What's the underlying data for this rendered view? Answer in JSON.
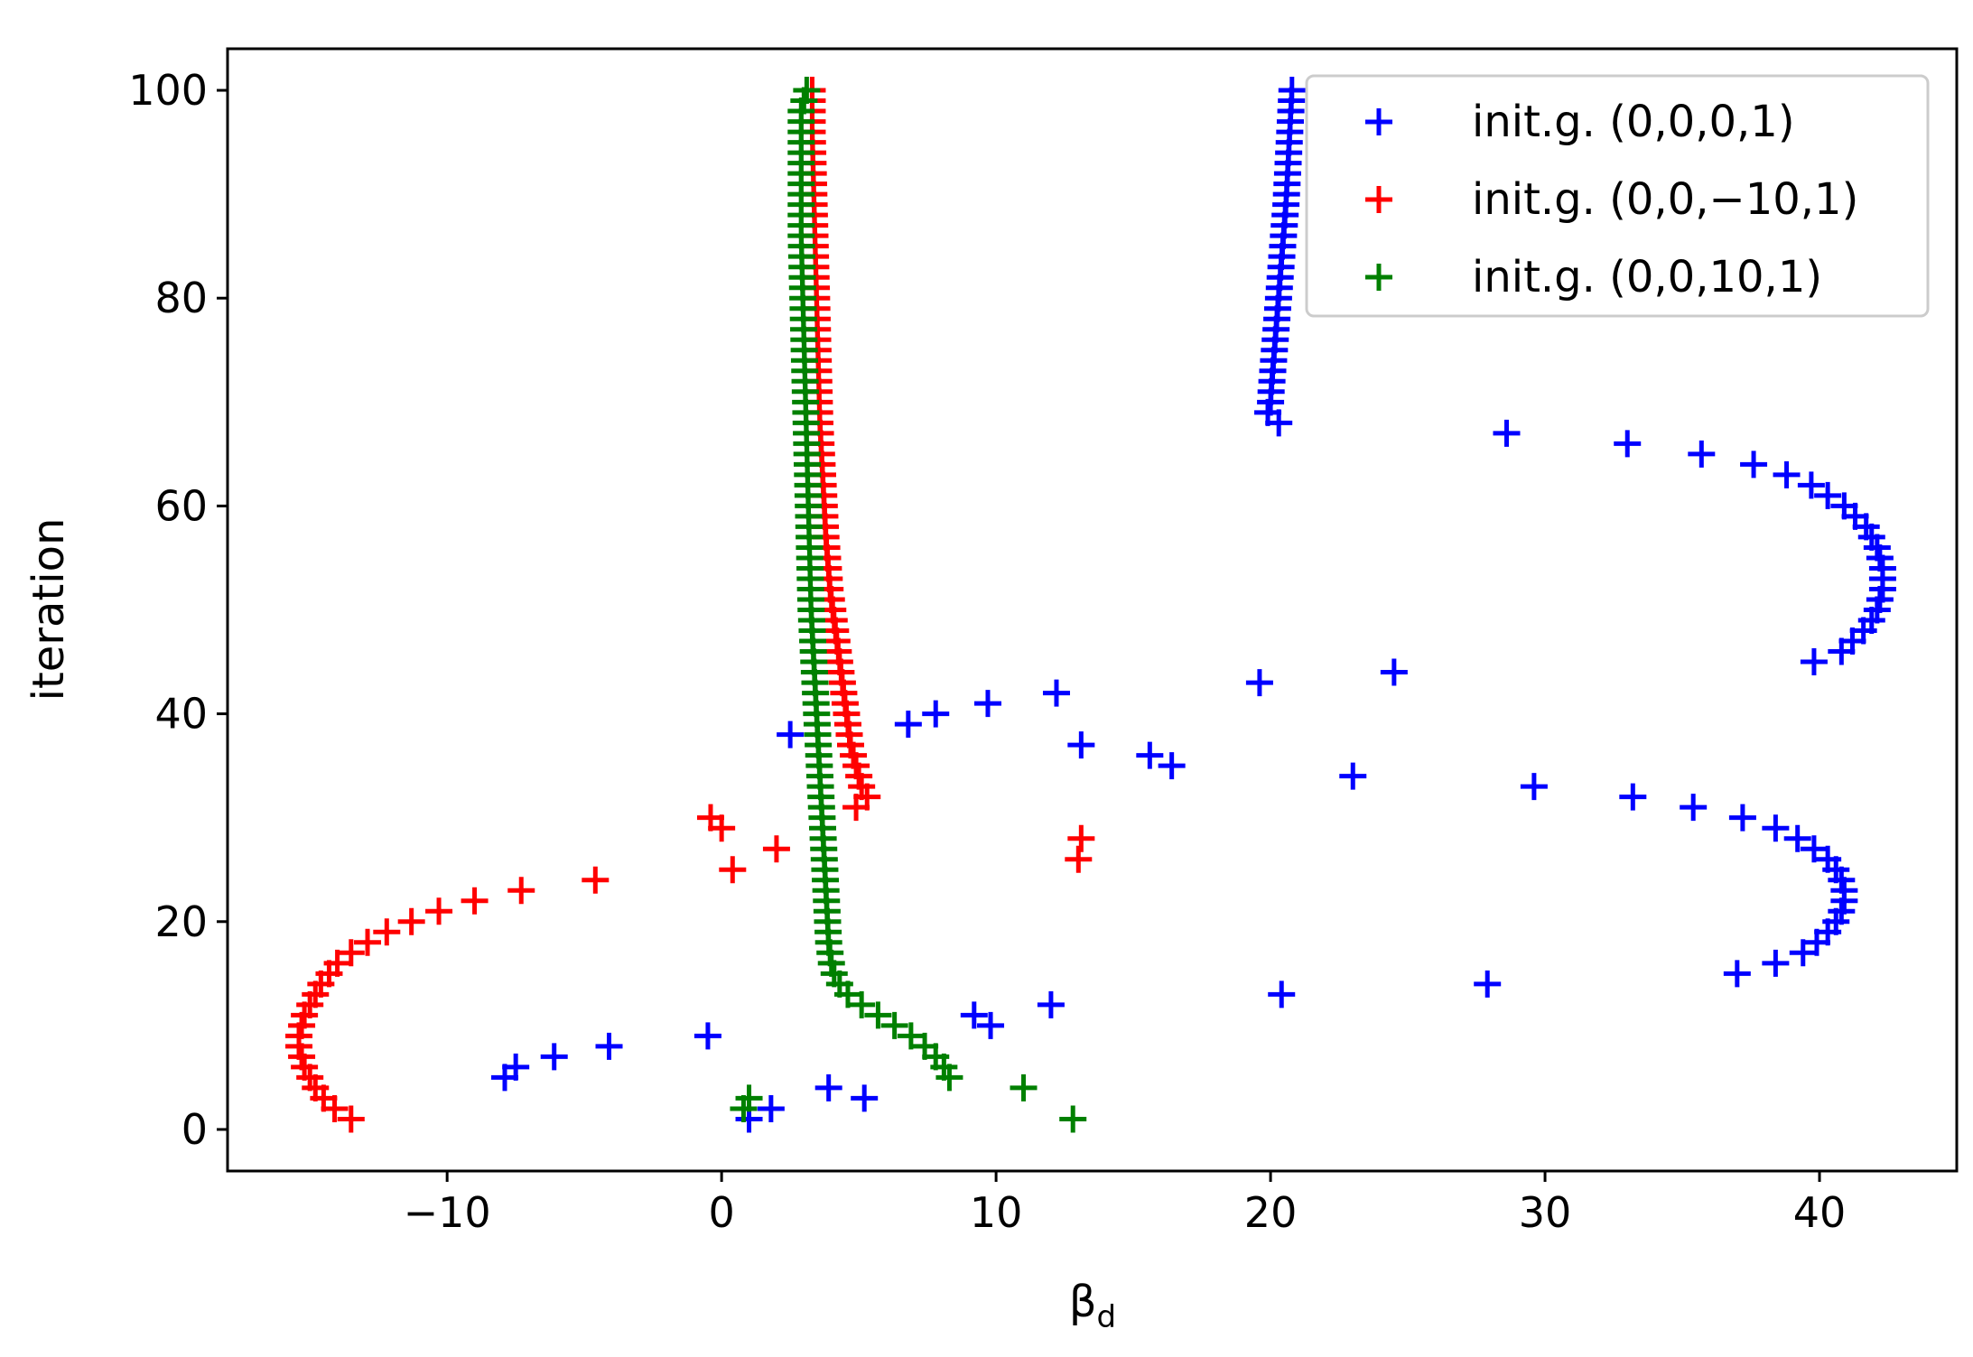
{
  "chart_data": {
    "type": "scatter",
    "title": "",
    "xlabel_main": "β",
    "xlabel_sub": "d",
    "ylabel": "iteration",
    "xlim": [
      -18,
      45
    ],
    "ylim": [
      -4,
      104
    ],
    "xticks": [
      -10,
      0,
      10,
      20,
      30,
      40
    ],
    "xtick_labels": [
      "−10",
      "0",
      "10",
      "20",
      "30",
      "40"
    ],
    "yticks": [
      0,
      20,
      40,
      60,
      80,
      100
    ],
    "ytick_labels": [
      "0",
      "20",
      "40",
      "60",
      "80",
      "100"
    ],
    "grid": false,
    "legend_position": "top-right",
    "marker": "plus",
    "series": [
      {
        "name": "init.g. (0,0,0,1)",
        "color": "#0000ff",
        "points": [
          [
            1,
            1
          ],
          [
            1.8,
            2
          ],
          [
            5.2,
            3
          ],
          [
            3.9,
            4
          ],
          [
            -7.9,
            5
          ],
          [
            -7.5,
            6
          ],
          [
            -6.1,
            7
          ],
          [
            -4.1,
            8
          ],
          [
            -0.5,
            9
          ],
          [
            9.8,
            10
          ],
          [
            9.2,
            11
          ],
          [
            12,
            12
          ],
          [
            20.4,
            13
          ],
          [
            27.9,
            14
          ],
          [
            37,
            15
          ],
          [
            38.4,
            16
          ],
          [
            39.4,
            17
          ],
          [
            39.9,
            18
          ],
          [
            40.3,
            19
          ],
          [
            40.6,
            20
          ],
          [
            40.8,
            21
          ],
          [
            40.9,
            22
          ],
          [
            40.9,
            23
          ],
          [
            40.8,
            24
          ],
          [
            40.6,
            25
          ],
          [
            40.3,
            26
          ],
          [
            39.8,
            27
          ],
          [
            39.2,
            28
          ],
          [
            38.4,
            29
          ],
          [
            37.2,
            30
          ],
          [
            35.4,
            31
          ],
          [
            33.2,
            32
          ],
          [
            29.6,
            33
          ],
          [
            23,
            34
          ],
          [
            16.4,
            35
          ],
          [
            15.6,
            36
          ],
          [
            13.1,
            37
          ],
          [
            2.5,
            38
          ],
          [
            6.8,
            39
          ],
          [
            7.8,
            40
          ],
          [
            9.7,
            41
          ],
          [
            12.2,
            42
          ],
          [
            19.6,
            43
          ],
          [
            24.5,
            44
          ],
          [
            39.8,
            45
          ],
          [
            40.8,
            46
          ],
          [
            41.2,
            47
          ],
          [
            41.6,
            48
          ],
          [
            41.9,
            49
          ],
          [
            42.1,
            50
          ],
          [
            42.2,
            51
          ],
          [
            42.3,
            52
          ],
          [
            42.3,
            53
          ],
          [
            42.3,
            54
          ],
          [
            42.2,
            55
          ],
          [
            42.1,
            56
          ],
          [
            41.9,
            57
          ],
          [
            41.7,
            58
          ],
          [
            41.3,
            59
          ],
          [
            40.9,
            60
          ],
          [
            40.3,
            61
          ],
          [
            39.7,
            62
          ],
          [
            38.8,
            63
          ],
          [
            37.6,
            64
          ],
          [
            35.7,
            65
          ],
          [
            33,
            66
          ],
          [
            28.6,
            67
          ],
          [
            20.3,
            68
          ],
          [
            19.9,
            69
          ],
          [
            20,
            70
          ],
          [
            20.02,
            71
          ],
          [
            20.05,
            72
          ],
          [
            20.08,
            73
          ],
          [
            20.11,
            74
          ],
          [
            20.14,
            75
          ],
          [
            20.17,
            76
          ],
          [
            20.2,
            77
          ],
          [
            20.23,
            78
          ],
          [
            20.26,
            79
          ],
          [
            20.29,
            80
          ],
          [
            20.32,
            81
          ],
          [
            20.35,
            82
          ],
          [
            20.38,
            83
          ],
          [
            20.41,
            84
          ],
          [
            20.44,
            85
          ],
          [
            20.47,
            86
          ],
          [
            20.5,
            87
          ],
          [
            20.53,
            88
          ],
          [
            20.56,
            89
          ],
          [
            20.58,
            90
          ],
          [
            20.6,
            91
          ],
          [
            20.62,
            92
          ],
          [
            20.64,
            93
          ],
          [
            20.66,
            94
          ],
          [
            20.68,
            95
          ],
          [
            20.7,
            96
          ],
          [
            20.72,
            97
          ],
          [
            20.74,
            98
          ],
          [
            20.76,
            99
          ],
          [
            20.78,
            100
          ]
        ]
      },
      {
        "name": "init.g. (0,0,−10,1)",
        "color": "#ff0000",
        "points": [
          [
            -13.5,
            1
          ],
          [
            -14.1,
            2
          ],
          [
            -14.5,
            3
          ],
          [
            -14.8,
            4
          ],
          [
            -15,
            5
          ],
          [
            -15.2,
            6
          ],
          [
            -15.3,
            7
          ],
          [
            -15.4,
            8
          ],
          [
            -15.4,
            9
          ],
          [
            -15.3,
            10
          ],
          [
            -15.2,
            11
          ],
          [
            -15,
            12
          ],
          [
            -14.8,
            13
          ],
          [
            -14.6,
            14
          ],
          [
            -14.3,
            15
          ],
          [
            -14,
            16
          ],
          [
            -13.5,
            17
          ],
          [
            -12.9,
            18
          ],
          [
            -12.2,
            19
          ],
          [
            -11.3,
            20
          ],
          [
            -10.3,
            21
          ],
          [
            -9,
            22
          ],
          [
            -7.3,
            23
          ],
          [
            -4.6,
            24
          ],
          [
            0.4,
            25
          ],
          [
            13,
            26
          ],
          [
            2,
            27
          ],
          [
            13.1,
            28
          ],
          [
            0,
            29
          ],
          [
            -0.4,
            30
          ],
          [
            4.9,
            31
          ],
          [
            5.3,
            32
          ],
          [
            5.1,
            33
          ],
          [
            5,
            34
          ],
          [
            4.9,
            35
          ],
          [
            4.8,
            36
          ],
          [
            4.7,
            37
          ],
          [
            4.65,
            38
          ],
          [
            4.6,
            39
          ],
          [
            4.55,
            40
          ],
          [
            4.5,
            41
          ],
          [
            4.45,
            42
          ],
          [
            4.4,
            43
          ],
          [
            4.35,
            44
          ],
          [
            4.3,
            45
          ],
          [
            4.25,
            46
          ],
          [
            4.2,
            47
          ],
          [
            4.15,
            48
          ],
          [
            4.1,
            49
          ],
          [
            4.05,
            50
          ],
          [
            4,
            51
          ],
          [
            3.95,
            52
          ],
          [
            3.92,
            53
          ],
          [
            3.89,
            54
          ],
          [
            3.86,
            55
          ],
          [
            3.83,
            56
          ],
          [
            3.8,
            57
          ],
          [
            3.78,
            58
          ],
          [
            3.76,
            59
          ],
          [
            3.74,
            60
          ],
          [
            3.72,
            61
          ],
          [
            3.7,
            62
          ],
          [
            3.68,
            63
          ],
          [
            3.66,
            64
          ],
          [
            3.64,
            65
          ],
          [
            3.62,
            66
          ],
          [
            3.6,
            67
          ],
          [
            3.58,
            68
          ],
          [
            3.57,
            69
          ],
          [
            3.56,
            70
          ],
          [
            3.55,
            71
          ],
          [
            3.54,
            72
          ],
          [
            3.53,
            73
          ],
          [
            3.52,
            74
          ],
          [
            3.51,
            75
          ],
          [
            3.5,
            76
          ],
          [
            3.49,
            77
          ],
          [
            3.48,
            78
          ],
          [
            3.47,
            79
          ],
          [
            3.46,
            80
          ],
          [
            3.45,
            81
          ],
          [
            3.44,
            82
          ],
          [
            3.43,
            83
          ],
          [
            3.42,
            84
          ],
          [
            3.41,
            85
          ],
          [
            3.4,
            86
          ],
          [
            3.39,
            87
          ],
          [
            3.38,
            88
          ],
          [
            3.37,
            89
          ],
          [
            3.36,
            90
          ],
          [
            3.35,
            91
          ],
          [
            3.34,
            92
          ],
          [
            3.33,
            93
          ],
          [
            3.32,
            94
          ],
          [
            3.31,
            95
          ],
          [
            3.3,
            96
          ],
          [
            3.3,
            97
          ],
          [
            3.3,
            98
          ],
          [
            3.3,
            99
          ],
          [
            3.3,
            100
          ]
        ]
      },
      {
        "name": "init.g. (0,0,10,1)",
        "color": "#008000",
        "points": [
          [
            12.8,
            1
          ],
          [
            0.8,
            2
          ],
          [
            1,
            3
          ],
          [
            11,
            4
          ],
          [
            8.3,
            5
          ],
          [
            8.1,
            6
          ],
          [
            7.8,
            7
          ],
          [
            7.4,
            8
          ],
          [
            6.9,
            9
          ],
          [
            6.3,
            10
          ],
          [
            5.7,
            11
          ],
          [
            5.1,
            12
          ],
          [
            4.6,
            13
          ],
          [
            4.3,
            14
          ],
          [
            4.1,
            15
          ],
          [
            4,
            16
          ],
          [
            3.95,
            17
          ],
          [
            3.9,
            18
          ],
          [
            3.88,
            19
          ],
          [
            3.86,
            20
          ],
          [
            3.84,
            21
          ],
          [
            3.82,
            22
          ],
          [
            3.8,
            23
          ],
          [
            3.78,
            24
          ],
          [
            3.76,
            25
          ],
          [
            3.74,
            26
          ],
          [
            3.72,
            27
          ],
          [
            3.7,
            28
          ],
          [
            3.68,
            29
          ],
          [
            3.66,
            30
          ],
          [
            3.64,
            31
          ],
          [
            3.62,
            32
          ],
          [
            3.6,
            33
          ],
          [
            3.58,
            34
          ],
          [
            3.56,
            35
          ],
          [
            3.54,
            36
          ],
          [
            3.52,
            37
          ],
          [
            3.5,
            38
          ],
          [
            3.48,
            39
          ],
          [
            3.46,
            40
          ],
          [
            3.44,
            41
          ],
          [
            3.42,
            42
          ],
          [
            3.4,
            43
          ],
          [
            3.38,
            44
          ],
          [
            3.36,
            45
          ],
          [
            3.34,
            46
          ],
          [
            3.32,
            47
          ],
          [
            3.3,
            48
          ],
          [
            3.28,
            49
          ],
          [
            3.26,
            50
          ],
          [
            3.25,
            51
          ],
          [
            3.24,
            52
          ],
          [
            3.23,
            53
          ],
          [
            3.22,
            54
          ],
          [
            3.21,
            55
          ],
          [
            3.2,
            56
          ],
          [
            3.19,
            57
          ],
          [
            3.18,
            58
          ],
          [
            3.17,
            59
          ],
          [
            3.16,
            60
          ],
          [
            3.15,
            61
          ],
          [
            3.14,
            62
          ],
          [
            3.13,
            63
          ],
          [
            3.12,
            64
          ],
          [
            3.11,
            65
          ],
          [
            3.1,
            66
          ],
          [
            3.09,
            67
          ],
          [
            3.08,
            68
          ],
          [
            3.07,
            69
          ],
          [
            3.06,
            70
          ],
          [
            3.05,
            71
          ],
          [
            3.04,
            72
          ],
          [
            3.03,
            73
          ],
          [
            3.02,
            74
          ],
          [
            3.01,
            75
          ],
          [
            3,
            76
          ],
          [
            2.99,
            77
          ],
          [
            2.98,
            78
          ],
          [
            2.97,
            79
          ],
          [
            2.96,
            80
          ],
          [
            2.95,
            81
          ],
          [
            2.94,
            82
          ],
          [
            2.93,
            83
          ],
          [
            2.92,
            84
          ],
          [
            2.91,
            85
          ],
          [
            2.9,
            86
          ],
          [
            2.9,
            87
          ],
          [
            2.9,
            88
          ],
          [
            2.9,
            89
          ],
          [
            2.9,
            90
          ],
          [
            2.9,
            91
          ],
          [
            2.9,
            92
          ],
          [
            2.9,
            93
          ],
          [
            2.9,
            94
          ],
          [
            2.9,
            95
          ],
          [
            2.9,
            96
          ],
          [
            2.9,
            97
          ],
          [
            2.9,
            98
          ],
          [
            3,
            99
          ],
          [
            3.1,
            100
          ]
        ]
      }
    ]
  }
}
